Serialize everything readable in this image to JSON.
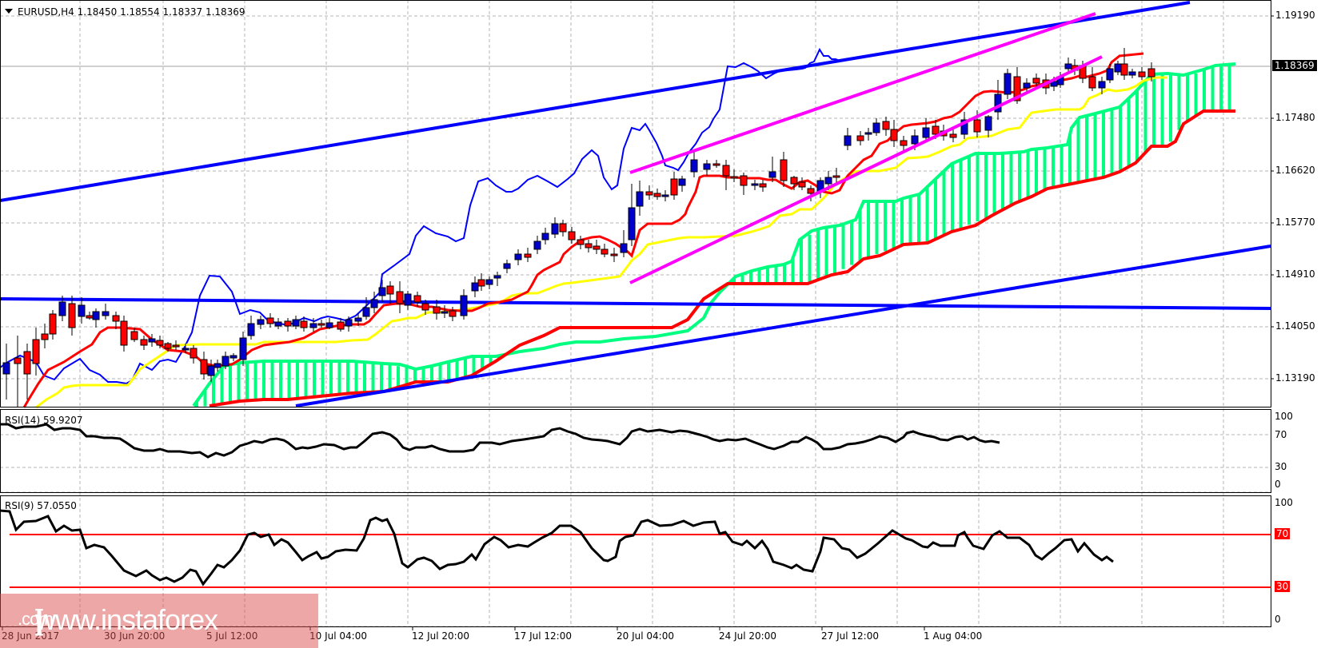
{
  "header": {
    "symbol": "EURUSD,H4",
    "open": "1.18450",
    "high": "1.18554",
    "low": "1.18337",
    "close": "1.18369",
    "text": "EURUSD,H4  1.18450 1.18554 1.18337 1.18369"
  },
  "price_axis": {
    "ticks": [
      "1.19190",
      "1.18369",
      "1.17480",
      "1.16620",
      "1.15770",
      "1.14910",
      "1.14050",
      "1.13190"
    ],
    "current_price": "1.18369"
  },
  "rsi14": {
    "label": "RSI(14) 59.9207",
    "ticks": [
      "100",
      "70",
      "30",
      "0"
    ]
  },
  "rsi9": {
    "label": "RSI(9) 57.0550",
    "ticks": [
      "100",
      "70",
      "30",
      "0"
    ],
    "levels": [
      "70",
      "30"
    ]
  },
  "time_axis": {
    "ticks": [
      "28 Jun 2017",
      "30 Jun 20:00",
      "5 Jul 12:00",
      "10 Jul 04:00",
      "12 Jul 20:00",
      "17 Jul 12:00",
      "20 Jul 04:00",
      "24 Jul 20:00",
      "27 Jul 12:00",
      "1 Aug 04:00"
    ]
  },
  "watermark": {
    "open_bracket": "[",
    "text": " www.instaforex",
    "suffix": ".com",
    "close_bracket": " ]"
  },
  "colors": {
    "bull_candle": "#0000cc",
    "bear_candle": "#ff0000",
    "tenkan": "#ff0000",
    "kijun": "#ffff00",
    "chikou": "#0000ff",
    "kumo": "#00ff80",
    "trendline": "#0000ff",
    "channel": "#ff00ff",
    "rsi_line": "#000000",
    "rsi_levels": "#ff0000"
  },
  "chart_data": [
    {
      "type": "candlestick",
      "title": "EURUSD,H4",
      "ylim": [
        1.128,
        1.195
      ],
      "y_ticks": [
        1.1319,
        1.1405,
        1.1491,
        1.1577,
        1.1662,
        1.1748,
        1.1919
      ],
      "x_ticks": [
        "28 Jun 2017",
        "30 Jun 20:00",
        "5 Jul 12:00",
        "10 Jul 04:00",
        "12 Jul 20:00",
        "17 Jul 12:00",
        "20 Jul 04:00",
        "24 Jul 20:00",
        "27 Jul 12:00",
        "1 Aug 04:00"
      ],
      "last_bar": {
        "open": 1.1845,
        "high": 1.18554,
        "low": 1.18337,
        "close": 1.18369
      },
      "indicators": [
        "Ichimoku Kinko Hyo (Tenkan red, Kijun yellow, Chikou blue, Kumo green/red)",
        "Blue trend channel lines",
        "Magenta ascending channel"
      ],
      "approx_close_path": [
        {
          "x": "28 Jun 2017",
          "close": 1.135
        },
        {
          "x": "30 Jun 20:00",
          "close": 1.142
        },
        {
          "x": "5 Jul 12:00",
          "close": 1.1355
        },
        {
          "x": "10 Jul 04:00",
          "close": 1.14
        },
        {
          "x": "12 Jul 20:00",
          "close": 1.1395
        },
        {
          "x": "17 Jul 12:00",
          "close": 1.154
        },
        {
          "x": "20 Jul 04:00",
          "close": 1.164
        },
        {
          "x": "24 Jul 20:00",
          "close": 1.163
        },
        {
          "x": "27 Jul 12:00",
          "close": 1.172
        },
        {
          "x": "1 Aug 04:00",
          "close": 1.183
        }
      ]
    },
    {
      "type": "line",
      "title": "RSI(14)",
      "value": 59.9207,
      "ylim": [
        0,
        100
      ],
      "levels": [
        70,
        30
      ]
    },
    {
      "type": "line",
      "title": "RSI(9)",
      "value": 57.055,
      "ylim": [
        0,
        100
      ],
      "levels": [
        70,
        30
      ]
    }
  ]
}
